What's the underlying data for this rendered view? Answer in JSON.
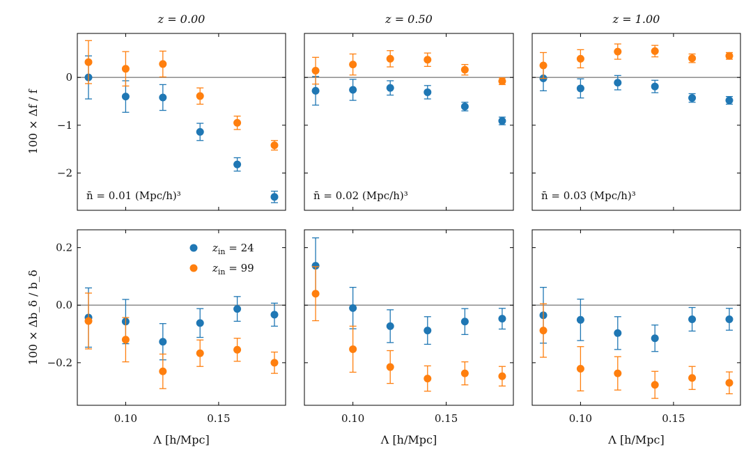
{
  "chart_data": {
    "type": "scatter",
    "layout": "2x3 grid of panels sharing x and row-wise y axes",
    "colors": {
      "z24": "#1f77b4",
      "z99": "#ff7f0e",
      "reference_line": "#808080"
    },
    "legend": {
      "placement": "top-right of lower-left panel",
      "entries": [
        {
          "key": "z24",
          "label_pre": "z",
          "label_sub": "in",
          "label_post": " = 24"
        },
        {
          "key": "z99",
          "label_pre": "z",
          "label_sub": "in",
          "label_post": " = 99"
        }
      ]
    },
    "x": [
      0.08,
      0.1,
      0.12,
      0.14,
      0.16,
      0.18
    ],
    "xlim": [
      0.074,
      0.186
    ],
    "xticks": [
      0.1,
      0.15
    ],
    "xtick_labels": [
      "0.10",
      "0.15"
    ],
    "xlabel": "Λ [h/Mpc]",
    "columns": [
      {
        "title": "z = 0.00",
        "annotation": "n̄ = 0.01 (Mpc/h)³"
      },
      {
        "title": "z = 0.50",
        "annotation": "n̄ = 0.02 (Mpc/h)³"
      },
      {
        "title": "z = 1.00",
        "annotation": "n̄ = 0.03 (Mpc/h)³"
      }
    ],
    "rows": [
      {
        "ylabel": "100 × Δf / f",
        "ylim": [
          -2.78,
          0.92
        ],
        "yticks": [
          -2,
          -1,
          0
        ],
        "ytick_labels": [
          "−2",
          "−1",
          "0"
        ],
        "panels": [
          {
            "series": [
              {
                "key": "z24",
                "name": "z_in = 24",
                "values": [
                  0.0,
                  -0.4,
                  -0.42,
                  -1.14,
                  -1.82,
                  -2.5
                ],
                "errors": [
                  0.45,
                  0.33,
                  0.27,
                  0.18,
                  0.14,
                  0.12
                ]
              },
              {
                "key": "z99",
                "name": "z_in = 99",
                "values": [
                  0.32,
                  0.18,
                  0.28,
                  -0.39,
                  -0.95,
                  -1.42
                ],
                "errors": [
                  0.45,
                  0.36,
                  0.27,
                  0.17,
                  0.14,
                  0.1
                ]
              }
            ]
          },
          {
            "series": [
              {
                "key": "z24",
                "name": "z_in = 24",
                "values": [
                  -0.28,
                  -0.26,
                  -0.22,
                  -0.31,
                  -0.61,
                  -0.91
                ],
                "errors": [
                  0.3,
                  0.22,
                  0.15,
                  0.14,
                  0.09,
                  0.08
                ]
              },
              {
                "key": "z99",
                "name": "z_in = 99",
                "values": [
                  0.14,
                  0.27,
                  0.39,
                  0.37,
                  0.16,
                  -0.08
                ],
                "errors": [
                  0.28,
                  0.22,
                  0.17,
                  0.14,
                  0.11,
                  0.07
                ]
              }
            ]
          },
          {
            "series": [
              {
                "key": "z24",
                "name": "z_in = 24",
                "values": [
                  -0.02,
                  -0.23,
                  -0.11,
                  -0.19,
                  -0.43,
                  -0.48
                ],
                "errors": [
                  0.26,
                  0.2,
                  0.15,
                  0.13,
                  0.09,
                  0.08
                ]
              },
              {
                "key": "z99",
                "name": "z_in = 99",
                "values": [
                  0.25,
                  0.39,
                  0.54,
                  0.55,
                  0.4,
                  0.45
                ],
                "errors": [
                  0.27,
                  0.19,
                  0.16,
                  0.12,
                  0.09,
                  0.07
                ]
              }
            ]
          }
        ]
      },
      {
        "ylabel": "100 × Δb_δ / b_δ",
        "ylim": [
          -0.348,
          0.262
        ],
        "yticks": [
          -0.2,
          0.0,
          0.2
        ],
        "ytick_labels": [
          "−0.2",
          "0.0",
          "0.2"
        ],
        "panels": [
          {
            "series": [
              {
                "key": "z24",
                "name": "z_in = 24",
                "values": [
                  -0.043,
                  -0.057,
                  -0.127,
                  -0.062,
                  -0.013,
                  -0.033
                ],
                "errors": [
                  0.103,
                  0.077,
                  0.063,
                  0.05,
                  0.043,
                  0.04
                ]
              },
              {
                "key": "z99",
                "name": "z_in = 99",
                "values": [
                  -0.055,
                  -0.12,
                  -0.23,
                  -0.167,
                  -0.155,
                  -0.2
                ],
                "errors": [
                  0.097,
                  0.077,
                  0.06,
                  0.046,
                  0.04,
                  0.037
                ]
              }
            ]
          },
          {
            "series": [
              {
                "key": "z24",
                "name": "z_in = 24",
                "values": [
                  0.137,
                  -0.01,
                  -0.073,
                  -0.088,
                  -0.057,
                  -0.047
                ],
                "errors": [
                  0.097,
                  0.072,
                  0.057,
                  0.048,
                  0.045,
                  0.036
                ]
              },
              {
                "key": "z99",
                "name": "z_in = 99",
                "values": [
                  0.04,
                  -0.153,
                  -0.215,
                  -0.255,
                  -0.237,
                  -0.247
                ],
                "errors": [
                  0.094,
                  0.08,
                  0.057,
                  0.044,
                  0.04,
                  0.034
                ]
              }
            ]
          },
          {
            "series": [
              {
                "key": "z24",
                "name": "z_in = 24",
                "values": [
                  -0.035,
                  -0.051,
                  -0.097,
                  -0.115,
                  -0.049,
                  -0.049
                ],
                "errors": [
                  0.097,
                  0.072,
                  0.057,
                  0.046,
                  0.041,
                  0.038
                ]
              },
              {
                "key": "z99",
                "name": "z_in = 99",
                "values": [
                  -0.088,
                  -0.221,
                  -0.237,
                  -0.277,
                  -0.253,
                  -0.27
                ],
                "errors": [
                  0.093,
                  0.077,
                  0.058,
                  0.047,
                  0.04,
                  0.038
                ]
              }
            ]
          }
        ]
      }
    ]
  }
}
